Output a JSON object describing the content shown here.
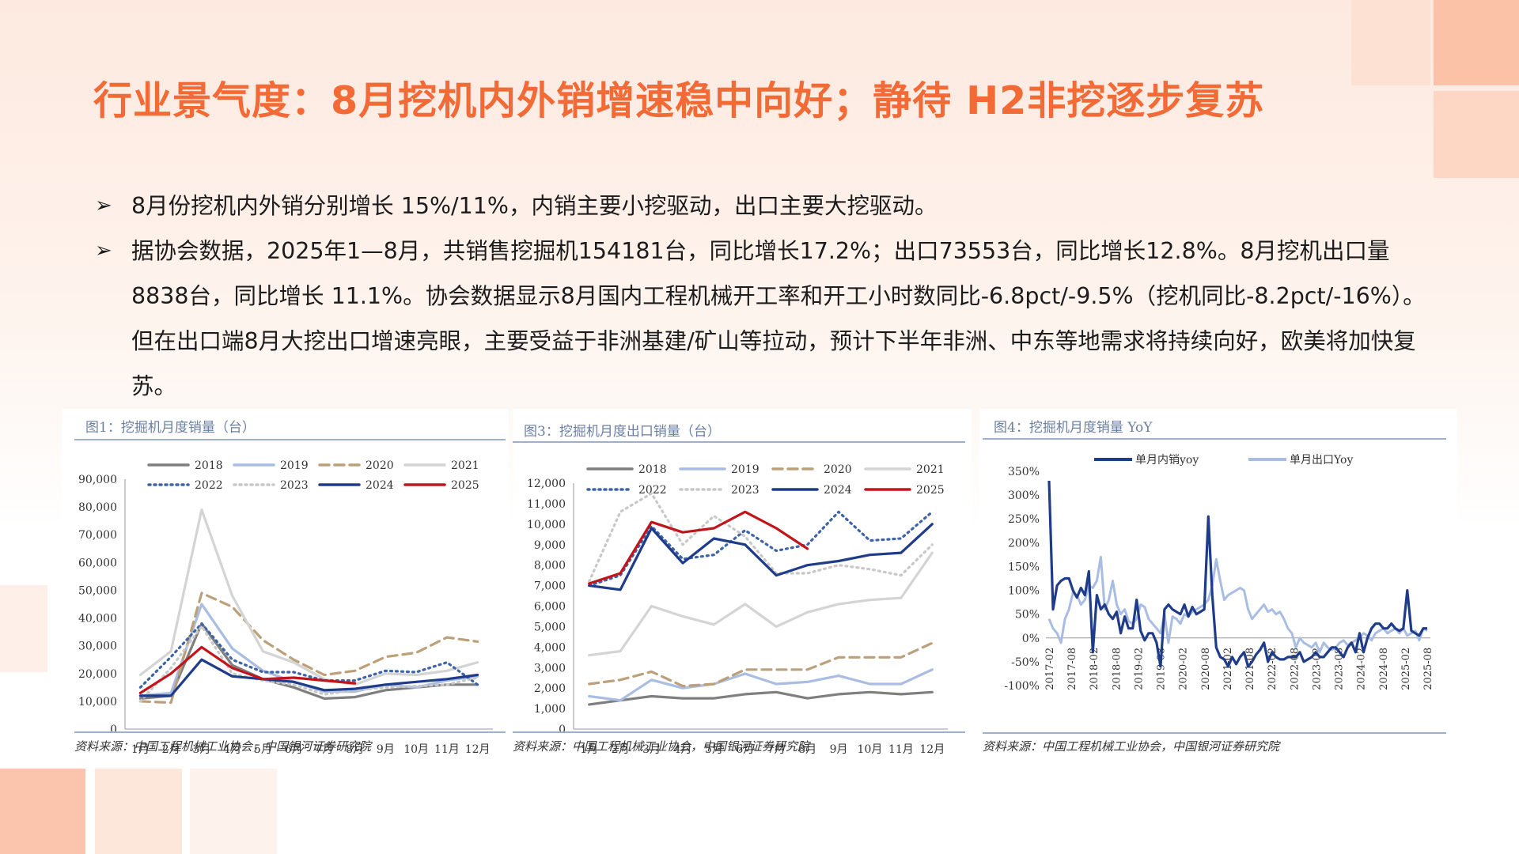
{
  "title": "行业景气度：8月挖机内外销增速稳中向好；静待 H2非挖逐步复苏",
  "bullets": [
    "8月份挖机内外销分别增长 15%/11%，内销主要小挖驱动，出口主要大挖驱动。",
    "据协会数据，2025年1—8月，共销售挖掘机154181台，同比增长17.2%；出口73553台，同比增长12.8%。8月挖机出口量8838台，同比增长 11.1%。协会数据显示8月国内工程机械开工率和开工小时数同比-6.8pct/-9.5%（挖机同比-8.2pct/-16%）。但在出口端8月大挖出口增速亮眼，主要受益于非洲基建/矿山等拉动，预计下半年非洲、中东等地需求将持续向好，欧美将加快复苏。"
  ],
  "colors": {
    "title": "#f26a36",
    "y2018": "#7f7f7f",
    "y2019": "#a9bde3",
    "y2020": "#bca07a",
    "y2021": "#d4d4d4",
    "y2022": "#3e63a8",
    "y2023": "#c8c8c8",
    "y2024": "#1f3c8a",
    "y2025": "#c0151b",
    "domestic": "#1f3c8a",
    "export": "#a9bde3"
  },
  "chart_data": [
    {
      "type": "line",
      "title": "图1：挖掘机月度销量（台）",
      "source": "资料来源：中国工程机械工业协会，中国银河证券研究院",
      "categories": [
        "1月",
        "2月",
        "3月",
        "4月",
        "5月",
        "6月",
        "7月",
        "8月",
        "9月",
        "10月",
        "11月",
        "12月"
      ],
      "ylim": [
        0,
        90000
      ],
      "yticks": [
        "0",
        "10,000",
        "20,000",
        "30,000",
        "40,000",
        "50,000",
        "60,000",
        "70,000",
        "80,000",
        "90,000"
      ],
      "legend": "top",
      "series": [
        {
          "name": "2018",
          "style": "solid",
          "color": "#7f7f7f",
          "values": [
            11000,
            12000,
            38000,
            23000,
            18000,
            15000,
            11000,
            11500,
            14000,
            15000,
            16000,
            16000
          ]
        },
        {
          "name": "2019",
          "style": "solid",
          "color": "#a9bde3",
          "values": [
            12000,
            13000,
            45000,
            29000,
            21000,
            17000,
            13500,
            13500,
            16000,
            15000,
            17500,
            19000
          ]
        },
        {
          "name": "2020",
          "style": "dashed",
          "color": "#bca07a",
          "values": [
            10000,
            9500,
            49000,
            44000,
            32000,
            25000,
            19500,
            21000,
            26000,
            27500,
            33000,
            31500
          ]
        },
        {
          "name": "2021",
          "style": "solid",
          "color": "#d4d4d4",
          "values": [
            19500,
            28000,
            79000,
            48000,
            28000,
            24000,
            18000,
            16000,
            20000,
            19500,
            21000,
            24000
          ]
        },
        {
          "name": "2022",
          "style": "dotted",
          "color": "#3e63a8",
          "values": [
            15000,
            26000,
            38000,
            25000,
            20500,
            20500,
            17500,
            17500,
            21000,
            20500,
            24000,
            16000
          ]
        },
        {
          "name": "2023",
          "style": "dotted",
          "color": "#c8c8c8",
          "values": [
            10000,
            22000,
            37000,
            20000,
            17500,
            16000,
            12500,
            14000,
            15000,
            15500,
            16000,
            18500
          ]
        },
        {
          "name": "2024",
          "style": "solid",
          "color": "#1f3c8a",
          "values": [
            12000,
            12000,
            25000,
            19000,
            18000,
            17000,
            14000,
            14500,
            16000,
            17000,
            18000,
            19500
          ]
        },
        {
          "name": "2025",
          "style": "solid",
          "color": "#c0151b",
          "values": [
            13000,
            20000,
            29500,
            22000,
            18000,
            18500,
            17500,
            16500,
            null,
            null,
            null,
            null
          ]
        }
      ]
    },
    {
      "type": "line",
      "title": "图3：挖掘机月度出口销量（台）",
      "source": "资料来源：中国工程机械工业协会，中国银河证券研究院",
      "categories": [
        "1月",
        "2月",
        "3月",
        "4月",
        "5月",
        "6月",
        "7月",
        "8月",
        "9月",
        "10月",
        "11月",
        "12月"
      ],
      "ylim": [
        0,
        12000
      ],
      "yticks": [
        "0",
        "1,000",
        "2,000",
        "3,000",
        "4,000",
        "5,000",
        "6,000",
        "7,000",
        "8,000",
        "9,000",
        "10,000",
        "11,000",
        "12,000"
      ],
      "legend": "top",
      "series": [
        {
          "name": "2018",
          "style": "solid",
          "color": "#7f7f7f",
          "values": [
            1200,
            1400,
            1600,
            1500,
            1500,
            1700,
            1800,
            1500,
            1700,
            1800,
            1700,
            1800
          ]
        },
        {
          "name": "2019",
          "style": "solid",
          "color": "#a9bde3",
          "values": [
            1600,
            1400,
            2400,
            2000,
            2200,
            2700,
            2200,
            2300,
            2600,
            2200,
            2200,
            2900
          ]
        },
        {
          "name": "2020",
          "style": "dashed",
          "color": "#bca07a",
          "values": [
            2200,
            2400,
            2800,
            2100,
            2200,
            2900,
            2900,
            2900,
            3500,
            3500,
            3500,
            4200
          ]
        },
        {
          "name": "2021",
          "style": "solid",
          "color": "#d4d4d4",
          "values": [
            3600,
            3800,
            6000,
            5500,
            5100,
            6100,
            5000,
            5700,
            6100,
            6300,
            6400,
            8600
          ]
        },
        {
          "name": "2022",
          "style": "dotted",
          "color": "#3e63a8",
          "values": [
            7000,
            7500,
            9900,
            8300,
            8500,
            9700,
            8700,
            9000,
            10600,
            9200,
            9300,
            10600
          ]
        },
        {
          "name": "2023",
          "style": "dotted",
          "color": "#c8c8c8",
          "values": [
            7200,
            10600,
            11500,
            9000,
            10400,
            9400,
            7600,
            7600,
            8000,
            7800,
            7500,
            9000
          ]
        },
        {
          "name": "2024",
          "style": "solid",
          "color": "#1f3c8a",
          "values": [
            7000,
            6800,
            9800,
            8100,
            9300,
            9000,
            7500,
            8000,
            8200,
            8500,
            8600,
            10000
          ]
        },
        {
          "name": "2025",
          "style": "solid",
          "color": "#c0151b",
          "values": [
            7100,
            7600,
            10100,
            9600,
            9800,
            10600,
            9800,
            8800,
            null,
            null,
            null,
            null
          ]
        }
      ]
    },
    {
      "type": "line",
      "title": "图4：挖掘机月度销量 YoY",
      "source": "资料来源：中国工程机械工业协会，中国银河证券研究院",
      "x_start": "2017-02",
      "x_end": "2025-08",
      "x_ticks": [
        "2017-02",
        "2017-08",
        "2018-02",
        "2018-08",
        "2019-02",
        "2019-08",
        "2020-02",
        "2020-08",
        "2021-02",
        "2021-08",
        "2022-02",
        "2022-08",
        "2023-02",
        "2023-08",
        "2024-02",
        "2024-08",
        "2025-02",
        "2025-08"
      ],
      "ylim": [
        -100,
        350
      ],
      "yticks": [
        "-100%",
        "-50%",
        "0%",
        "50%",
        "100%",
        "150%",
        "200%",
        "250%",
        "300%",
        "350%"
      ],
      "legend": "top",
      "series": [
        {
          "name": "单月内销yoy",
          "color": "#1f3c8a",
          "values": [
            330,
            60,
            110,
            120,
            125,
            125,
            100,
            85,
            105,
            90,
            140,
            -30,
            90,
            60,
            70,
            50,
            40,
            55,
            10,
            45,
            20,
            20,
            80,
            15,
            -5,
            10,
            10,
            -10,
            -60,
            60,
            70,
            60,
            55,
            50,
            70,
            45,
            65,
            50,
            55,
            60,
            255,
            90,
            -20,
            -40,
            -45,
            -60,
            -40,
            -55,
            -40,
            -30,
            -60,
            -50,
            -35,
            -25,
            -10,
            -50,
            -30,
            -40,
            -45,
            -45,
            -40,
            -40,
            -40,
            -30,
            -50,
            -45,
            -40,
            -30,
            -40,
            -40,
            -30,
            -20,
            -20,
            -30,
            -40,
            -20,
            -10,
            -30,
            10,
            -30,
            0,
            20,
            30,
            30,
            20,
            20,
            30,
            20,
            15,
            20,
            100,
            15,
            10,
            5,
            20,
            20
          ]
        },
        {
          "name": "单月出口Yoy",
          "color": "#a9bde3",
          "values": [
            40,
            20,
            10,
            -10,
            40,
            60,
            95,
            90,
            70,
            80,
            110,
            105,
            120,
            170,
            60,
            80,
            120,
            70,
            50,
            60,
            35,
            30,
            40,
            70,
            65,
            40,
            30,
            20,
            10,
            50,
            -10,
            45,
            40,
            30,
            50,
            45,
            55,
            60,
            65,
            70,
            80,
            110,
            165,
            120,
            80,
            90,
            95,
            100,
            105,
            100,
            60,
            40,
            50,
            60,
            70,
            55,
            60,
            50,
            55,
            40,
            20,
            10,
            -20,
            0,
            -10,
            -15,
            -20,
            -10,
            -30,
            -10,
            -20,
            -25,
            -20,
            -10,
            -5,
            -15,
            -10,
            -5,
            0,
            10,
            5,
            -5,
            10,
            15,
            20,
            10,
            15,
            20,
            10,
            20,
            5,
            10,
            15,
            -5,
            20,
            15
          ]
        }
      ]
    }
  ]
}
